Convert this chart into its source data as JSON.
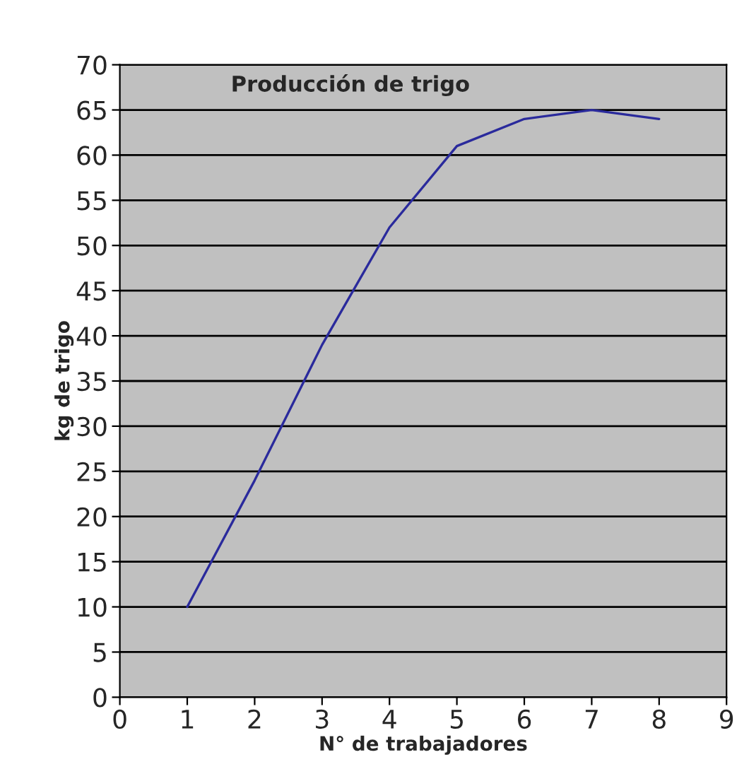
{
  "chart_data": {
    "type": "line",
    "title": "Producción de trigo",
    "xlabel": "N° de trabajadores",
    "ylabel": "kg de trigo",
    "x": [
      1,
      2,
      3,
      4,
      5,
      6,
      7,
      8
    ],
    "series": [
      {
        "color": "#2a2a9c",
        "values": [
          10,
          24,
          39,
          52,
          61,
          64,
          65,
          64
        ]
      }
    ],
    "xlim": [
      0,
      9
    ],
    "xticks": [
      0,
      1,
      2,
      3,
      4,
      5,
      6,
      7,
      8,
      9
    ],
    "ylim": [
      0,
      70
    ],
    "yticks": [
      0,
      5,
      10,
      15,
      20,
      25,
      30,
      35,
      40,
      45,
      50,
      55,
      60,
      65,
      70
    ],
    "grid": "y",
    "marker": "none",
    "line_style": "solid"
  }
}
